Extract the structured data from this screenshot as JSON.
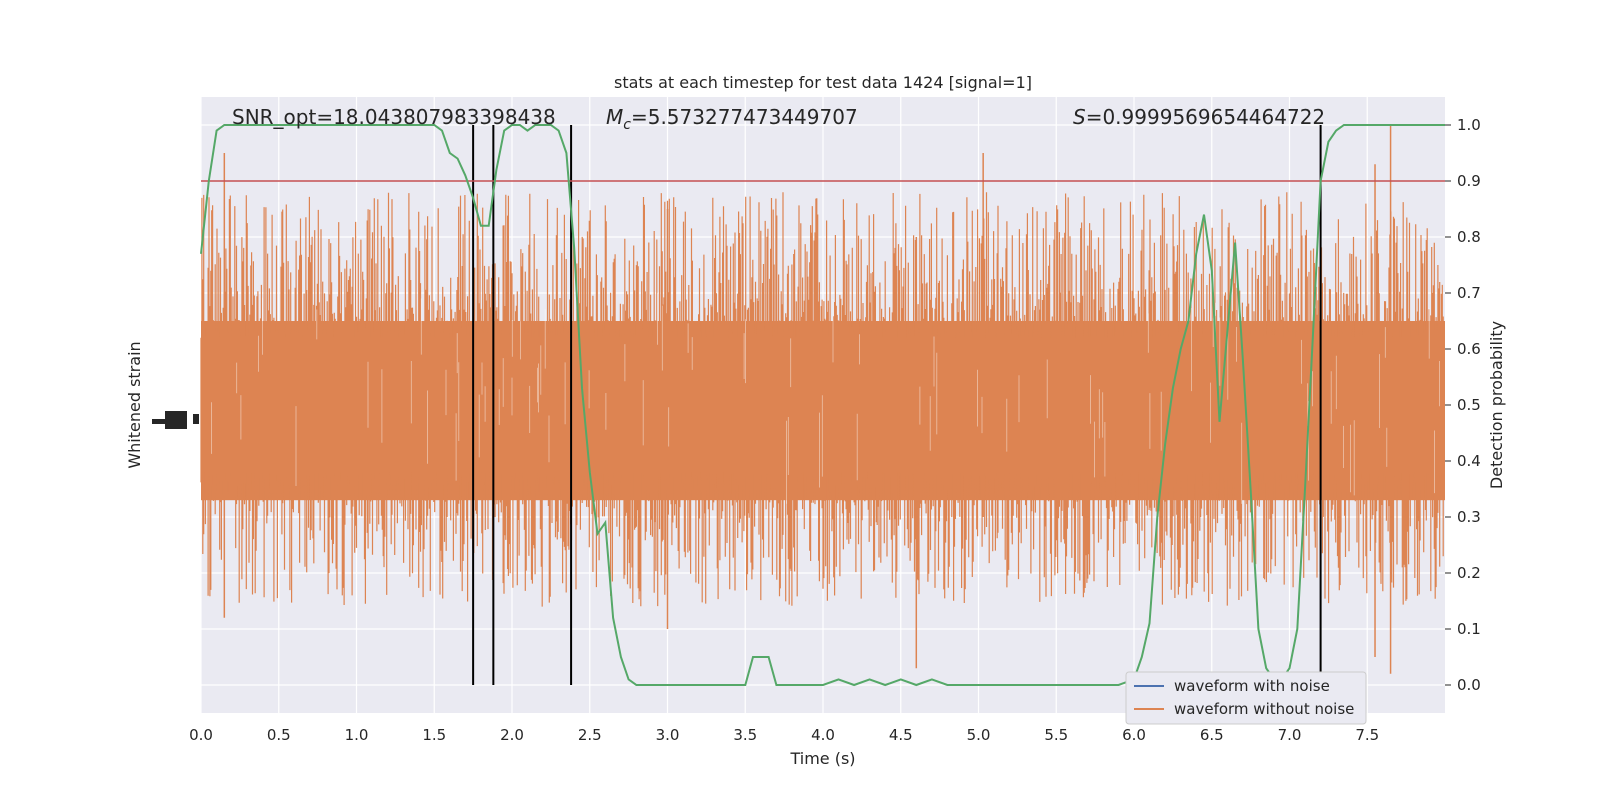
{
  "chart_data": {
    "type": "line",
    "title": "stats at each timestep for test data 1424 [signal=1]",
    "xlabel": "Time (s)",
    "ylabel_left": "Whitened strain",
    "ylabel_right": "Detection probability",
    "xlim": [
      0,
      8
    ],
    "ylim_right": [
      -0.05,
      1.05
    ],
    "x_ticks": [
      "0.0",
      "0.5",
      "1.0",
      "1.5",
      "2.0",
      "2.5",
      "3.0",
      "3.5",
      "4.0",
      "4.5",
      "5.0",
      "5.5",
      "6.0",
      "6.5",
      "7.0",
      "7.5"
    ],
    "y_ticks_right": [
      "0.0",
      "0.1",
      "0.2",
      "0.3",
      "0.4",
      "0.5",
      "0.6",
      "0.7",
      "0.8",
      "0.9",
      "1.0"
    ],
    "annotations": {
      "snr": "SNR_opt=18.043807983398438",
      "mc_symbol": "M",
      "mc_sub": "c",
      "mc_value": "=5.573277473449707",
      "s_symbol": "S",
      "s_value": "=0.9999569654464722"
    },
    "threshold": 0.9,
    "vertical_lines": [
      1.75,
      1.88,
      2.38,
      7.2
    ],
    "legend": {
      "placement": "lower-right",
      "entries": [
        "waveform with noise",
        "waveform without noise"
      ]
    },
    "grid": true,
    "series": [
      {
        "name": "waveform without noise",
        "color": "#dd8452",
        "description_kind": "strain_noise_band"
      },
      {
        "name": "detection_probability",
        "color": "#55a868",
        "x": [
          0.0,
          0.05,
          0.1,
          0.15,
          0.2,
          0.3,
          0.5,
          0.75,
          1.0,
          1.25,
          1.5,
          1.55,
          1.6,
          1.65,
          1.7,
          1.75,
          1.8,
          1.85,
          1.9,
          1.95,
          2.0,
          2.05,
          2.1,
          2.15,
          2.2,
          2.25,
          2.3,
          2.35,
          2.4,
          2.45,
          2.5,
          2.55,
          2.6,
          2.65,
          2.7,
          2.75,
          2.8,
          2.9,
          3.0,
          3.1,
          3.3,
          3.5,
          3.55,
          3.6,
          3.65,
          3.7,
          3.8,
          4.0,
          4.1,
          4.2,
          4.3,
          4.4,
          4.5,
          4.6,
          4.7,
          4.8,
          5.0,
          5.5,
          5.9,
          6.0,
          6.05,
          6.1,
          6.15,
          6.2,
          6.25,
          6.3,
          6.35,
          6.4,
          6.45,
          6.5,
          6.55,
          6.6,
          6.65,
          6.7,
          6.75,
          6.8,
          6.85,
          6.9,
          6.95,
          7.0,
          7.05,
          7.1,
          7.15,
          7.2,
          7.25,
          7.3,
          7.35,
          7.5,
          7.75,
          8.0
        ],
        "y": [
          0.77,
          0.9,
          0.99,
          1.0,
          1.0,
          1.0,
          1.0,
          1.0,
          1.0,
          1.0,
          1.0,
          0.99,
          0.95,
          0.94,
          0.91,
          0.87,
          0.82,
          0.82,
          0.92,
          0.99,
          1.0,
          1.0,
          0.99,
          1.0,
          1.0,
          1.0,
          0.99,
          0.95,
          0.78,
          0.53,
          0.38,
          0.27,
          0.29,
          0.12,
          0.05,
          0.01,
          0.0,
          0.0,
          0.0,
          0.0,
          0.0,
          0.0,
          0.05,
          0.05,
          0.05,
          0.0,
          0.0,
          0.0,
          0.01,
          0.0,
          0.01,
          0.0,
          0.01,
          0.0,
          0.01,
          0.0,
          0.0,
          0.0,
          0.0,
          0.01,
          0.05,
          0.11,
          0.3,
          0.43,
          0.53,
          0.6,
          0.65,
          0.77,
          0.84,
          0.74,
          0.47,
          0.63,
          0.79,
          0.58,
          0.35,
          0.1,
          0.03,
          0.01,
          0.01,
          0.03,
          0.1,
          0.35,
          0.62,
          0.9,
          0.97,
          0.99,
          1.0,
          1.0,
          1.0,
          1.0
        ]
      }
    ]
  }
}
